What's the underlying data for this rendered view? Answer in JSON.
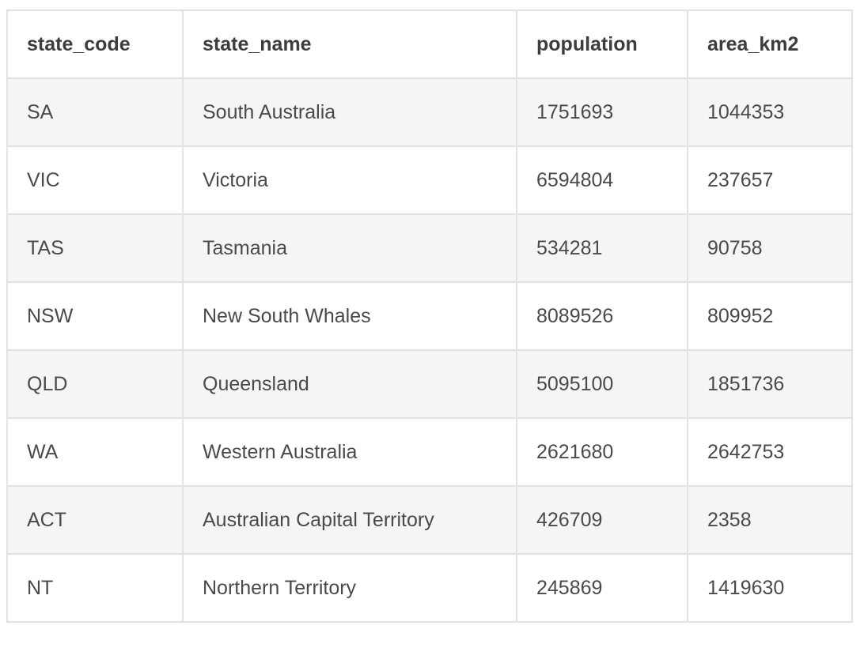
{
  "table": {
    "headers": [
      "state_code",
      "state_name",
      "population",
      "area_km2"
    ],
    "rows": [
      [
        "SA",
        "South Australia",
        "1751693",
        "1044353"
      ],
      [
        "VIC",
        "Victoria",
        "6594804",
        "237657"
      ],
      [
        "TAS",
        "Tasmania",
        "534281",
        "90758"
      ],
      [
        "NSW",
        "New South Whales",
        "8089526",
        "809952"
      ],
      [
        "QLD",
        "Queensland",
        "5095100",
        "1851736"
      ],
      [
        "WA",
        "Western Australia",
        "2621680",
        "2642753"
      ],
      [
        "ACT",
        "Australian Capital Territory",
        "426709",
        "2358"
      ],
      [
        "NT",
        "Northern Territory",
        "245869",
        "1419630"
      ]
    ]
  },
  "colors": {
    "border": "#e2e2e2",
    "row_stripe": "#f5f5f5",
    "text": "#4a4a4a"
  }
}
